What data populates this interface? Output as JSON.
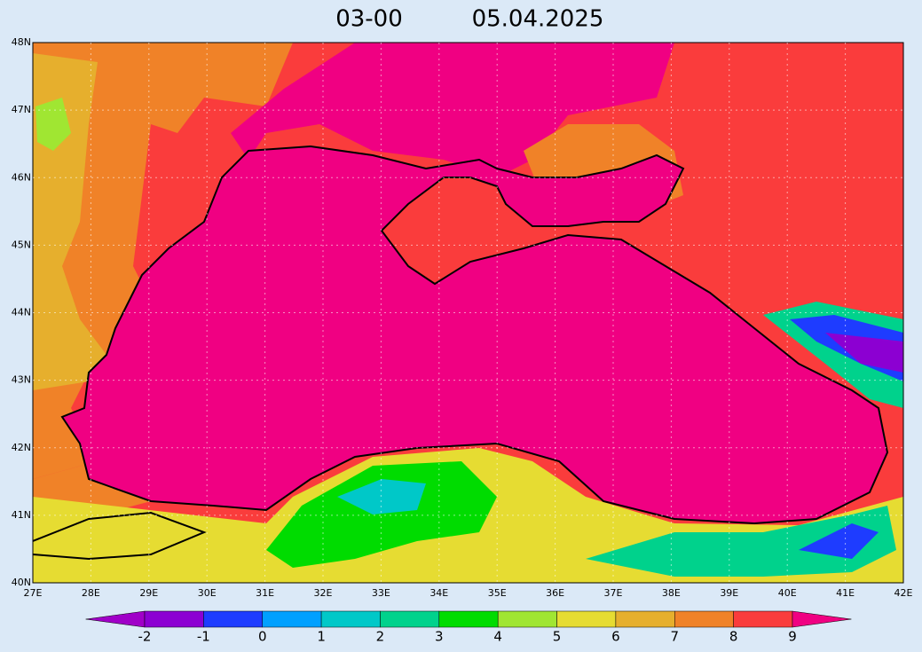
{
  "title": {
    "time": "03-00",
    "date": "05.04.2025"
  },
  "map": {
    "lat_labels": [
      "48N",
      "47N",
      "46N",
      "45N",
      "44N",
      "43N",
      "42N",
      "41N",
      "40N"
    ],
    "lon_labels": [
      "27E",
      "28E",
      "29E",
      "30E",
      "31E",
      "32E",
      "33E",
      "34E",
      "35E",
      "36E",
      "37E",
      "38E",
      "39E",
      "40E",
      "41E",
      "42E"
    ]
  },
  "colorbar": {
    "labels": [
      -2,
      -1,
      0,
      1,
      2,
      3,
      4,
      5,
      6,
      7,
      8,
      9
    ],
    "colors": [
      "#a000c8",
      "#8c00d2",
      "#1e3cff",
      "#00a0ff",
      "#00c8c8",
      "#00d28c",
      "#00dc00",
      "#a0e632",
      "#e6dc32",
      "#e6af2d",
      "#f08228",
      "#fa3c3c",
      "#f00082"
    ]
  }
}
